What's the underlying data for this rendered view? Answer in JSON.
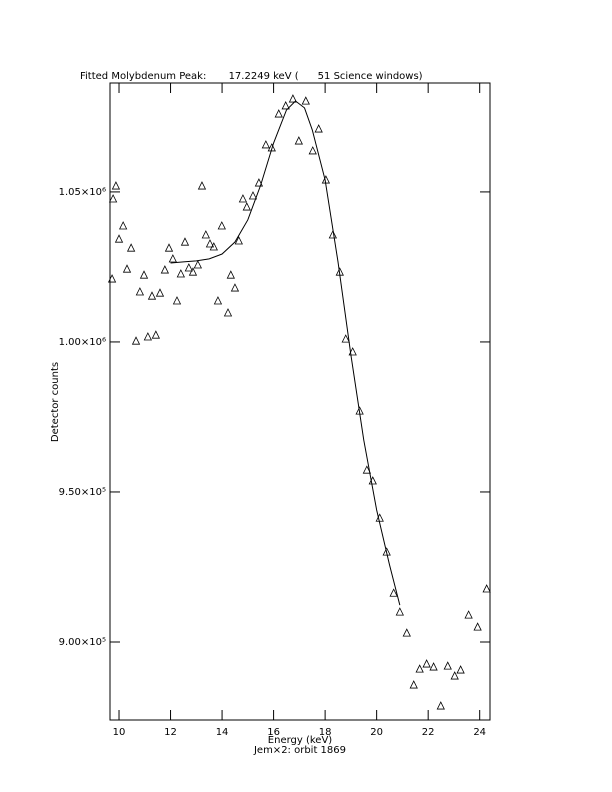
{
  "chart_data": {
    "type": "scatter",
    "title": "Fitted Molybdenum Peak:       17.2249 keV (      51 Science windows)",
    "xlabel": "Energy (keV)",
    "subtitle": "Jem×2: orbit 1869",
    "ylabel": "Detector counts",
    "xlim": [
      9.65,
      24.4
    ],
    "xticks": [
      10,
      12,
      14,
      16,
      18,
      20,
      22,
      24
    ],
    "ylim": [
      874000,
      1086300
    ],
    "yticks": [
      {
        "value": 900000,
        "label": "9.00×10⁵"
      },
      {
        "value": 950000,
        "label": "9.50×10⁵"
      },
      {
        "value": 1000000,
        "label": "1.00×10⁶"
      },
      {
        "value": 1050000,
        "label": "1.05×10⁶"
      }
    ],
    "color": "#000000",
    "series": [
      {
        "type": "scatter",
        "x": [
          9.77,
          9.88,
          9.73,
          10.0,
          10.16,
          10.31,
          10.47,
          10.66,
          10.81,
          10.97,
          11.12,
          11.28,
          11.43,
          11.59,
          11.78,
          11.94,
          12.09,
          12.25,
          12.4,
          12.56,
          12.71,
          12.87,
          13.06,
          13.22,
          13.37,
          13.53,
          13.68,
          13.84,
          13.99,
          14.23,
          14.34,
          14.5,
          14.65,
          14.81,
          14.96,
          15.2,
          15.43,
          15.7,
          15.93,
          16.2,
          16.47,
          16.75,
          16.98,
          17.25,
          17.52,
          17.75,
          18.03,
          18.3,
          18.57,
          18.8,
          19.07,
          19.34,
          19.62,
          19.85,
          20.12,
          20.39,
          20.66,
          20.9,
          21.17,
          21.44,
          21.67,
          21.94,
          22.21,
          22.49,
          22.76,
          23.03,
          23.26,
          23.57,
          23.92,
          24.27
        ],
        "values": [
          1047700,
          1052000,
          1021000,
          1034300,
          1038700,
          1024300,
          1031300,
          1000300,
          1016700,
          1022300,
          1001700,
          1015300,
          1002300,
          1016300,
          1024000,
          1031300,
          1027700,
          1013700,
          1022700,
          1033300,
          1024700,
          1023300,
          1025700,
          1052000,
          1035700,
          1032700,
          1031700,
          1013700,
          1038700,
          1009700,
          1022300,
          1018000,
          1033700,
          1047700,
          1045000,
          1048700,
          1053000,
          1065700,
          1064700,
          1076000,
          1078700,
          1081000,
          1067000,
          1080300,
          1063700,
          1071000,
          1054000,
          1035700,
          1023300,
          1001000,
          996700,
          977000,
          957300,
          953700,
          941300,
          930000,
          916300,
          910000,
          903000,
          885700,
          891000,
          892700,
          891700,
          878700,
          892000,
          888700,
          890700,
          909000,
          905000,
          917700
        ]
      },
      {
        "type": "line",
        "x": [
          12.0,
          12.5,
          13.0,
          13.5,
          14.0,
          14.5,
          15.0,
          15.5,
          16.0,
          16.5,
          16.85,
          17.2,
          17.5,
          18.0,
          18.5,
          19.0,
          19.5,
          20.0,
          20.5,
          20.9
        ],
        "values": [
          1026300,
          1026700,
          1027000,
          1027700,
          1029300,
          1033300,
          1040700,
          1052300,
          1066300,
          1077300,
          1080300,
          1078000,
          1070700,
          1054000,
          1026700,
          995700,
          967300,
          944000,
          925700,
          912300
        ]
      }
    ]
  }
}
